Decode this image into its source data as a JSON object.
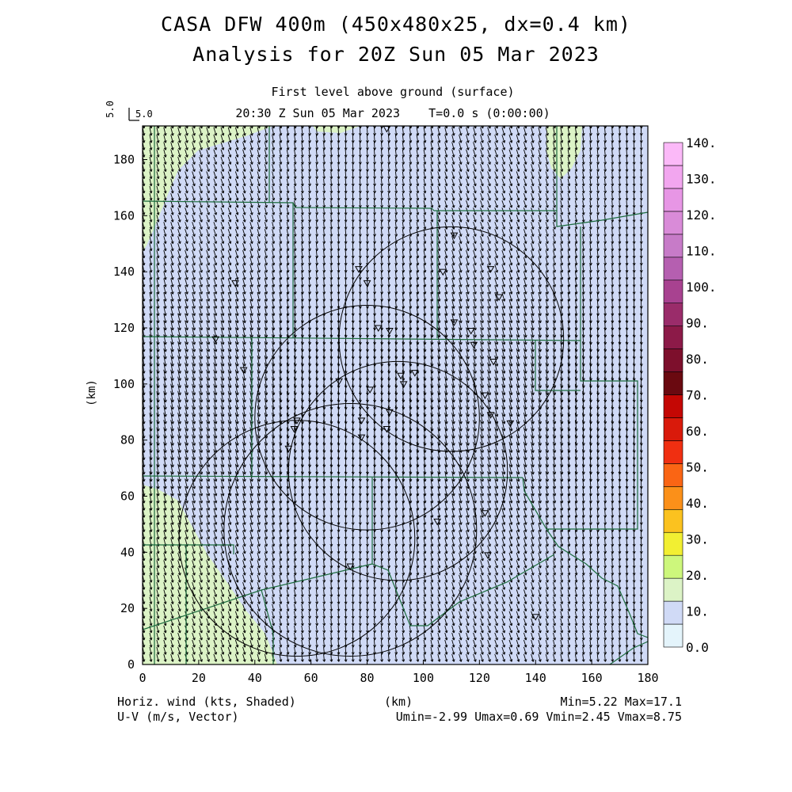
{
  "header": {
    "title_line1": "CASA DFW 400m (450x480x25, dx=0.4 km)",
    "title_line2": "Analysis for 20Z Sun 05 Mar 2023",
    "subtitle_line1": "First level above ground (surface)",
    "subtitle_line2": "20:30 Z Sun 05 Mar 2023    T=0.0 s (0:00:00)"
  },
  "reference_vector": {
    "label_vertical": "5.0",
    "label": "5.0"
  },
  "axes": {
    "x_label": "(km)",
    "y_label": "(km)",
    "x_ticks": [
      "0",
      "20",
      "40",
      "60",
      "80",
      "100",
      "120",
      "140",
      "160",
      "180"
    ],
    "y_ticks": [
      "0",
      "20",
      "40",
      "60",
      "80",
      "100",
      "120",
      "140",
      "160",
      "180"
    ],
    "x_range": [
      0,
      180
    ],
    "y_range": [
      0,
      192
    ]
  },
  "colorbar": {
    "labels": [
      "0.0",
      "10.",
      "20.",
      "30.",
      "40.",
      "50.",
      "60.",
      "70.",
      "80.",
      "90.",
      "100.",
      "110.",
      "120.",
      "130.",
      "140."
    ],
    "colors": [
      "#e4f4fb",
      "#d0daf6",
      "#dcf3c6",
      "#cdf77c",
      "#f2ef32",
      "#fbc21f",
      "#fb9019",
      "#fa6514",
      "#f02f11",
      "#d91a0b",
      "#c40704",
      "#6a0910",
      "#7d0f2c",
      "#8c1a48",
      "#9a2c6a",
      "#a84290",
      "#b55fb0",
      "#c77bc8",
      "#d98bd8",
      "#e796e5",
      "#f2a6ef",
      "#fbb9f8"
    ]
  },
  "footer": {
    "left_line1": "Horiz. wind (kts, Shaded)",
    "left_line2": "U-V (m/s, Vector)",
    "center": "(km)",
    "right_line1": "Min=5.22 Max=17.1",
    "right_line2": "Umin=-2.99 Umax=0.69 Vmin=2.45 Vmax=8.75"
  },
  "map_data": {
    "radar_sites": [
      {
        "x": 110,
        "y": 116,
        "r": 40
      },
      {
        "x": 80,
        "y": 88,
        "r": 40
      },
      {
        "x": 91,
        "y": 69,
        "r": 39
      },
      {
        "x": 55,
        "y": 45,
        "r": 42
      },
      {
        "x": 74,
        "y": 48,
        "r": 45
      }
    ],
    "stations": [
      [
        87,
        191
      ],
      [
        111,
        153
      ],
      [
        107,
        140
      ],
      [
        77,
        141
      ],
      [
        80,
        136
      ],
      [
        124,
        141
      ],
      [
        127,
        131
      ],
      [
        33,
        136
      ],
      [
        111,
        122
      ],
      [
        84,
        120
      ],
      [
        88,
        119
      ],
      [
        117,
        119
      ],
      [
        118,
        114
      ],
      [
        26,
        116
      ],
      [
        36,
        105
      ],
      [
        125,
        108
      ],
      [
        92,
        103
      ],
      [
        93,
        100
      ],
      [
        70,
        101
      ],
      [
        81,
        98
      ],
      [
        97,
        104
      ],
      [
        122,
        96
      ],
      [
        124,
        89
      ],
      [
        55,
        87
      ],
      [
        54,
        84
      ],
      [
        88,
        90
      ],
      [
        87,
        84
      ],
      [
        78,
        87
      ],
      [
        131,
        86
      ],
      [
        78,
        81
      ],
      [
        52,
        77
      ],
      [
        122,
        54
      ],
      [
        105,
        51
      ],
      [
        123,
        39
      ],
      [
        74,
        35
      ],
      [
        140,
        17
      ]
    ]
  }
}
